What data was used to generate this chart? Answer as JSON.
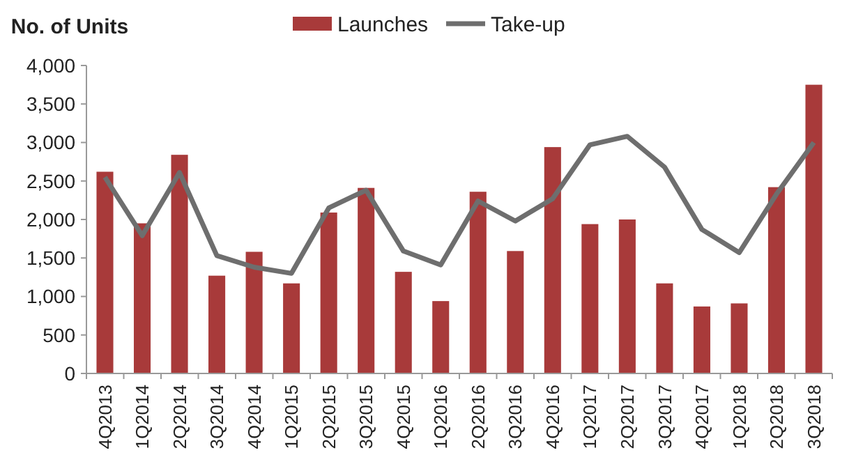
{
  "chart_data": {
    "type": "bar",
    "ylabel": "No. of Units",
    "categories": [
      "4Q2013",
      "1Q2014",
      "2Q2014",
      "3Q2014",
      "4Q2014",
      "1Q2015",
      "2Q2015",
      "3Q2015",
      "4Q2015",
      "1Q2016",
      "2Q2016",
      "3Q2016",
      "4Q2016",
      "1Q2017",
      "2Q2017",
      "3Q2017",
      "4Q2017",
      "1Q2018",
      "2Q2018",
      "3Q2018"
    ],
    "series": [
      {
        "name": "Launches",
        "color": "#a83a3a",
        "values": [
          2620,
          1950,
          2840,
          1270,
          1580,
          1170,
          2090,
          2410,
          1320,
          940,
          2360,
          1590,
          2940,
          1940,
          2000,
          1170,
          870,
          910,
          2420,
          3750
        ]
      },
      {
        "name": "Take-up",
        "type": "line",
        "color": "#6e6e6e",
        "values": [
          2550,
          1790,
          2610,
          1530,
          1380,
          1300,
          2150,
          2380,
          1590,
          1410,
          2240,
          1980,
          2270,
          2970,
          3080,
          2680,
          1870,
          1570,
          2330,
          3000
        ]
      }
    ],
    "ylim": [
      0,
      4000
    ],
    "yticks": [
      {
        "value": 0,
        "label": "0"
      },
      {
        "value": 500,
        "label": "500"
      },
      {
        "value": 1000,
        "label": "1,000"
      },
      {
        "value": 1500,
        "label": "1,500"
      },
      {
        "value": 2000,
        "label": "2,000"
      },
      {
        "value": 2500,
        "label": "2,500"
      },
      {
        "value": 3000,
        "label": "3,000"
      },
      {
        "value": 3500,
        "label": "3,500"
      },
      {
        "value": 4000,
        "label": "4,000"
      }
    ],
    "grid": false,
    "legend": "top",
    "marker": "none",
    "line_style": "solid"
  }
}
